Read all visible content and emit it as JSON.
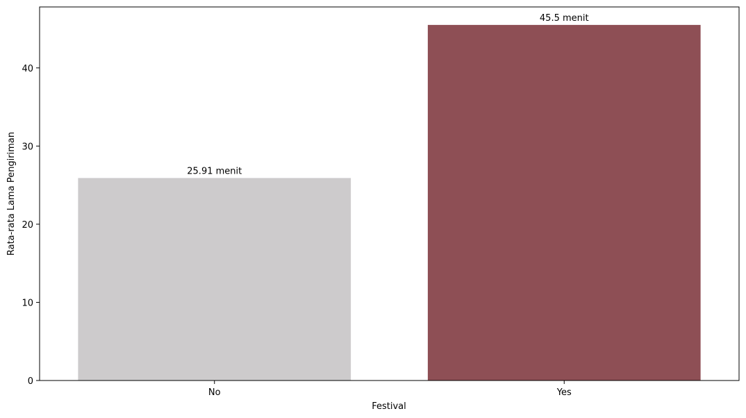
{
  "chart_data": {
    "type": "bar",
    "title": "",
    "xlabel": "Festival",
    "ylabel": "Rata-rata Lama Pengiriman",
    "categories": [
      "No",
      "Yes"
    ],
    "values": [
      25.91,
      45.5
    ],
    "bar_labels": [
      "25.91 menit",
      "45.5 menit"
    ],
    "colors": [
      "#cdcbcc",
      "#8e4f55"
    ],
    "ylim": [
      0,
      47.8
    ],
    "yticks": [
      0,
      10,
      20,
      30,
      40
    ],
    "grid": false,
    "legend": "none"
  }
}
